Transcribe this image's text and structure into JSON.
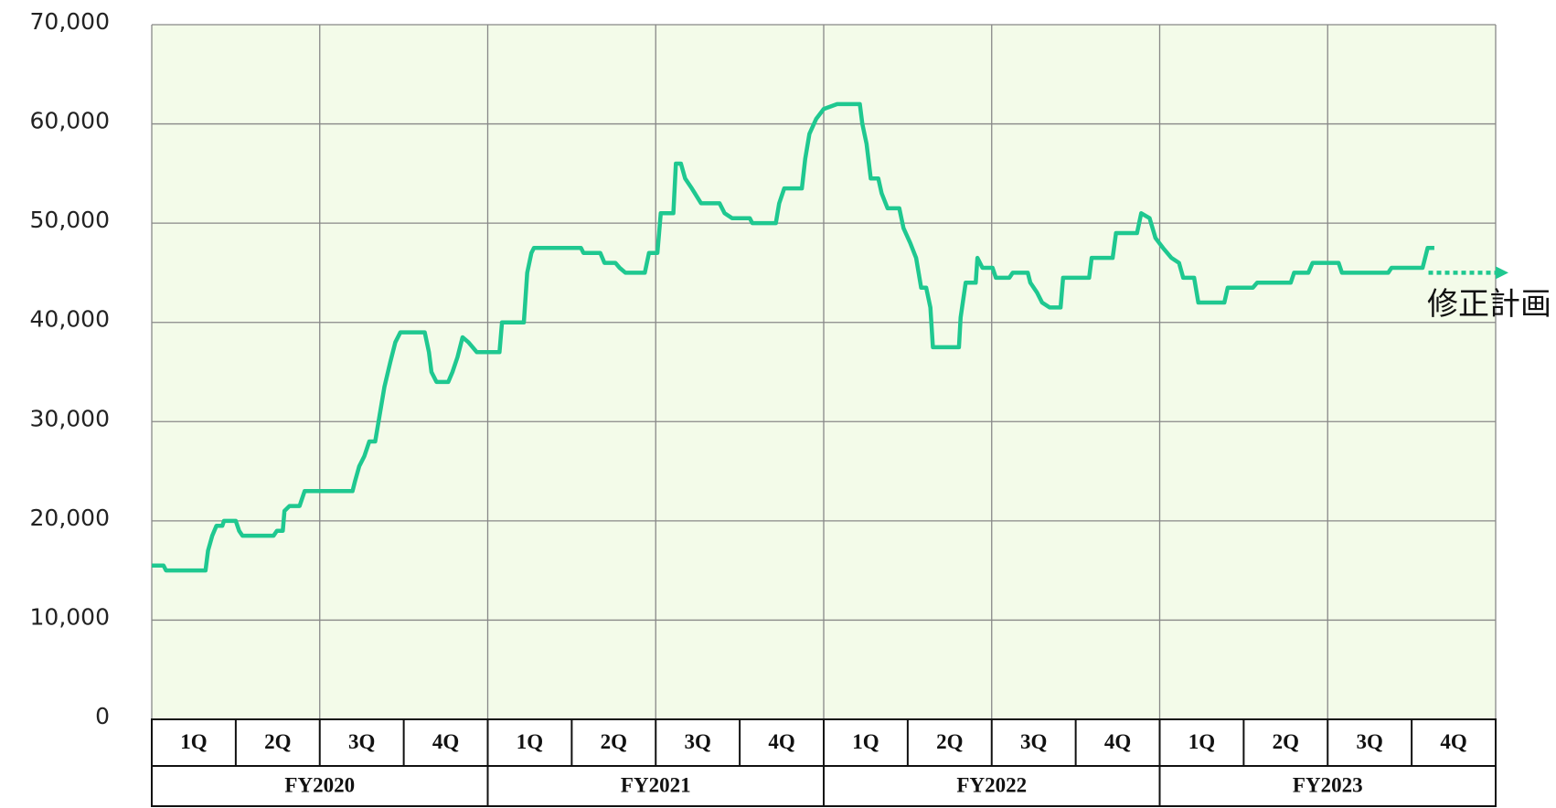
{
  "chart_data": {
    "type": "line",
    "categories": [
      "1Q",
      "2Q",
      "3Q",
      "4Q",
      "1Q",
      "2Q",
      "3Q",
      "4Q",
      "1Q",
      "2Q",
      "3Q",
      "4Q",
      "1Q",
      "2Q",
      "3Q",
      "4Q"
    ],
    "groups": [
      "FY2020",
      "FY2021",
      "FY2022",
      "FY2023"
    ],
    "xlim": [
      0,
      16
    ],
    "xticks": [
      0,
      2,
      4,
      6,
      8,
      10,
      12,
      14,
      16
    ],
    "ylim": [
      0,
      70000
    ],
    "yticks": [
      0,
      {
        "value": 10000,
        "label": "10,000"
      },
      {
        "value": 20000,
        "label": "20,000"
      },
      {
        "value": 30000,
        "label": "30,000"
      },
      {
        "value": 40000,
        "label": "40,000"
      },
      {
        "value": 50000,
        "label": "50,000"
      },
      {
        "value": 60000,
        "label": "60,000"
      },
      {
        "value": 70000,
        "label": "70,000"
      }
    ],
    "grid": true,
    "background": "#f3fbe9",
    "series": [
      {
        "color": "#1fc890",
        "x": [
          0,
          0.14,
          0.17,
          0.64,
          0.67,
          0.72,
          0.77,
          0.84,
          0.86,
          1.0,
          1.04,
          1.08,
          1.45,
          1.49,
          1.56,
          1.58,
          1.64,
          1.76,
          1.78,
          1.82,
          2.39,
          2.42,
          2.47,
          2.53,
          2.59,
          2.66,
          2.71,
          2.77,
          2.84,
          2.9,
          2.96,
          3.25,
          3.3,
          3.33,
          3.39,
          3.53,
          3.58,
          3.64,
          3.7,
          3.77,
          3.87,
          4.14,
          4.17,
          4.43,
          4.47,
          4.52,
          4.55,
          5.11,
          5.14,
          5.34,
          5.39,
          5.52,
          5.57,
          5.64,
          5.87,
          5.92,
          6.02,
          6.06,
          6.21,
          6.24,
          6.3,
          6.35,
          6.43,
          6.54,
          6.76,
          6.82,
          6.91,
          7.12,
          7.15,
          7.43,
          7.47,
          7.53,
          7.74,
          7.78,
          7.83,
          7.91,
          8.0,
          8.16,
          8.43,
          8.46,
          8.51,
          8.56,
          8.65,
          8.69,
          8.76,
          8.9,
          8.95,
          9.03,
          9.1,
          9.16,
          9.22,
          9.27,
          9.3,
          9.61,
          9.63,
          9.69,
          9.81,
          9.83,
          9.89,
          10.01,
          10.05,
          10.21,
          10.25,
          10.43,
          10.46,
          10.54,
          10.6,
          10.69,
          10.82,
          10.85,
          11.16,
          11.19,
          11.44,
          11.48,
          11.73,
          11.78,
          11.88,
          11.95,
          12.04,
          12.14,
          12.23,
          12.28,
          12.41,
          12.46,
          12.77,
          12.81,
          13.11,
          13.16,
          13.56,
          13.6,
          13.77,
          13.82,
          14.13,
          14.17,
          14.72,
          14.76,
          15.13,
          15.19,
          15.27
        ],
        "values": [
          15500,
          15500,
          15000,
          15000,
          17000,
          18500,
          19500,
          19500,
          20000,
          20000,
          19000,
          18500,
          18500,
          19000,
          19000,
          21000,
          21500,
          21500,
          22000,
          23000,
          23000,
          24000,
          25500,
          26500,
          28000,
          28000,
          30500,
          33500,
          36000,
          38000,
          39000,
          39000,
          37000,
          35000,
          34000,
          34000,
          35000,
          36500,
          38500,
          38000,
          37000,
          37000,
          40000,
          40000,
          45000,
          47000,
          47500,
          47500,
          47000,
          47000,
          46000,
          46000,
          45500,
          45000,
          45000,
          47000,
          47000,
          51000,
          51000,
          56000,
          56000,
          54500,
          53500,
          52000,
          52000,
          51000,
          50500,
          50500,
          50000,
          50000,
          52000,
          53500,
          53500,
          56500,
          59000,
          60500,
          61500,
          62000,
          62000,
          60000,
          58000,
          54500,
          54500,
          53000,
          51500,
          51500,
          49500,
          48000,
          46500,
          43500,
          43500,
          41500,
          37500,
          37500,
          40500,
          44000,
          44000,
          46500,
          45500,
          45500,
          44500,
          44500,
          45000,
          45000,
          44000,
          43000,
          42000,
          41500,
          41500,
          44500,
          44500,
          46500,
          46500,
          49000,
          49000,
          51000,
          50500,
          48500,
          47500,
          46500,
          46000,
          44500,
          44500,
          42000,
          42000,
          43500,
          43500,
          44000,
          44000,
          45000,
          45000,
          46000,
          46000,
          45000,
          45000,
          45500,
          45500,
          47500,
          47500
        ]
      },
      {
        "name": "修正計画",
        "color": "#1fc890",
        "dashed": true,
        "x": [
          15.2,
          16.0
        ],
        "values": [
          45000,
          45000
        ]
      }
    ]
  }
}
